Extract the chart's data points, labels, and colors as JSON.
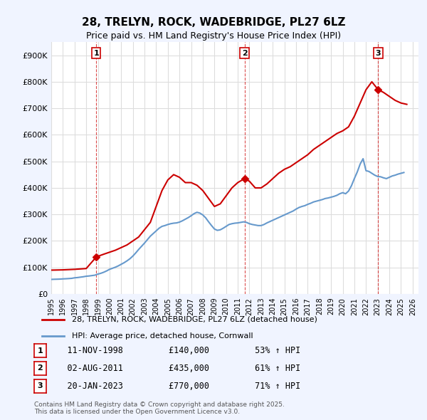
{
  "title": "28, TRELYN, ROCK, WADEBRIDGE, PL27 6LZ",
  "subtitle": "Price paid vs. HM Land Registry's House Price Index (HPI)",
  "background_color": "#f0f4ff",
  "plot_background": "#ffffff",
  "ylabel_ticks": [
    "£0",
    "£100K",
    "£200K",
    "£300K",
    "£400K",
    "£500K",
    "£600K",
    "£700K",
    "£800K",
    "£900K"
  ],
  "ytick_values": [
    0,
    100000,
    200000,
    300000,
    400000,
    500000,
    600000,
    700000,
    800000,
    900000
  ],
  "ylim": [
    0,
    950000
  ],
  "xlim_start": 1995.0,
  "xlim_end": 2026.5,
  "transactions": [
    {
      "num": 1,
      "date_str": "11-NOV-1998",
      "price": 140000,
      "pct": "53%",
      "year": 1998.87
    },
    {
      "num": 2,
      "date_str": "02-AUG-2011",
      "price": 435000,
      "pct": "61%",
      "year": 2011.58
    },
    {
      "num": 3,
      "date_str": "20-JAN-2023",
      "price": 770000,
      "pct": "71%",
      "year": 2023.05
    }
  ],
  "hpi_line_color": "#6699cc",
  "property_line_color": "#cc0000",
  "marker_color": "#cc0000",
  "vline_color": "#cc0000",
  "grid_color": "#dddddd",
  "legend_line1": "28, TRELYN, ROCK, WADEBRIDGE, PL27 6LZ (detached house)",
  "legend_line2": "HPI: Average price, detached house, Cornwall",
  "footer": "Contains HM Land Registry data © Crown copyright and database right 2025.\nThis data is licensed under the Open Government Licence v3.0.",
  "hpi_data": {
    "years": [
      1995.0,
      1995.25,
      1995.5,
      1995.75,
      1996.0,
      1996.25,
      1996.5,
      1996.75,
      1997.0,
      1997.25,
      1997.5,
      1997.75,
      1998.0,
      1998.25,
      1998.5,
      1998.75,
      1999.0,
      1999.25,
      1999.5,
      1999.75,
      2000.0,
      2000.25,
      2000.5,
      2000.75,
      2001.0,
      2001.25,
      2001.5,
      2001.75,
      2002.0,
      2002.25,
      2002.5,
      2002.75,
      2003.0,
      2003.25,
      2003.5,
      2003.75,
      2004.0,
      2004.25,
      2004.5,
      2004.75,
      2005.0,
      2005.25,
      2005.5,
      2005.75,
      2006.0,
      2006.25,
      2006.5,
      2006.75,
      2007.0,
      2007.25,
      2007.5,
      2007.75,
      2008.0,
      2008.25,
      2008.5,
      2008.75,
      2009.0,
      2009.25,
      2009.5,
      2009.75,
      2010.0,
      2010.25,
      2010.5,
      2010.75,
      2011.0,
      2011.25,
      2011.5,
      2011.75,
      2012.0,
      2012.25,
      2012.5,
      2012.75,
      2013.0,
      2013.25,
      2013.5,
      2013.75,
      2014.0,
      2014.25,
      2014.5,
      2014.75,
      2015.0,
      2015.25,
      2015.5,
      2015.75,
      2016.0,
      2016.25,
      2016.5,
      2016.75,
      2017.0,
      2017.25,
      2017.5,
      2017.75,
      2018.0,
      2018.25,
      2018.5,
      2018.75,
      2019.0,
      2019.25,
      2019.5,
      2019.75,
      2020.0,
      2020.25,
      2020.5,
      2020.75,
      2021.0,
      2021.25,
      2021.5,
      2021.75,
      2022.0,
      2022.25,
      2022.5,
      2022.75,
      2023.0,
      2023.25,
      2023.5,
      2023.75,
      2024.0,
      2024.25,
      2024.5,
      2024.75,
      2025.0,
      2025.25
    ],
    "values": [
      55000,
      55500,
      55800,
      56200,
      57000,
      57500,
      58200,
      59000,
      61000,
      62000,
      63500,
      65000,
      67000,
      68000,
      69500,
      71000,
      75000,
      78000,
      82000,
      87000,
      93000,
      97000,
      101000,
      106000,
      112000,
      118000,
      125000,
      133000,
      143000,
      155000,
      168000,
      180000,
      192000,
      205000,
      218000,
      228000,
      238000,
      248000,
      255000,
      258000,
      262000,
      265000,
      267000,
      268000,
      271000,
      276000,
      282000,
      288000,
      295000,
      303000,
      308000,
      305000,
      298000,
      287000,
      272000,
      258000,
      245000,
      240000,
      242000,
      248000,
      255000,
      262000,
      265000,
      267000,
      268000,
      270000,
      272000,
      270000,
      265000,
      262000,
      260000,
      258000,
      258000,
      262000,
      268000,
      273000,
      278000,
      283000,
      288000,
      293000,
      298000,
      303000,
      308000,
      313000,
      320000,
      326000,
      330000,
      333000,
      338000,
      342000,
      347000,
      350000,
      353000,
      356000,
      360000,
      362000,
      365000,
      368000,
      372000,
      378000,
      382000,
      378000,
      388000,
      408000,
      435000,
      460000,
      490000,
      510000,
      465000,
      462000,
      455000,
      448000,
      443000,
      442000,
      438000,
      435000,
      440000,
      445000,
      448000,
      452000,
      455000,
      458000
    ]
  },
  "property_data": {
    "years": [
      1995.0,
      1996.0,
      1997.0,
      1998.0,
      1998.87,
      1999.5,
      2000.5,
      2001.5,
      2002.5,
      2003.5,
      2004.0,
      2004.5,
      2005.0,
      2005.5,
      2006.0,
      2006.5,
      2007.0,
      2007.5,
      2008.0,
      2008.5,
      2009.0,
      2009.5,
      2010.0,
      2010.5,
      2011.0,
      2011.58,
      2012.0,
      2012.5,
      2013.0,
      2013.5,
      2014.0,
      2014.5,
      2015.0,
      2015.5,
      2016.0,
      2016.5,
      2017.0,
      2017.5,
      2018.0,
      2018.5,
      2019.0,
      2019.5,
      2020.0,
      2020.5,
      2021.0,
      2021.5,
      2022.0,
      2022.5,
      2023.05,
      2023.5,
      2024.0,
      2024.5,
      2025.0,
      2025.5
    ],
    "values": [
      90000,
      91000,
      93000,
      96000,
      140000,
      150000,
      165000,
      185000,
      215000,
      270000,
      330000,
      390000,
      430000,
      450000,
      440000,
      420000,
      420000,
      410000,
      390000,
      360000,
      330000,
      340000,
      370000,
      400000,
      420000,
      435000,
      425000,
      400000,
      400000,
      415000,
      435000,
      455000,
      470000,
      480000,
      495000,
      510000,
      525000,
      545000,
      560000,
      575000,
      590000,
      605000,
      615000,
      630000,
      670000,
      720000,
      770000,
      800000,
      770000,
      760000,
      745000,
      730000,
      720000,
      715000
    ]
  }
}
